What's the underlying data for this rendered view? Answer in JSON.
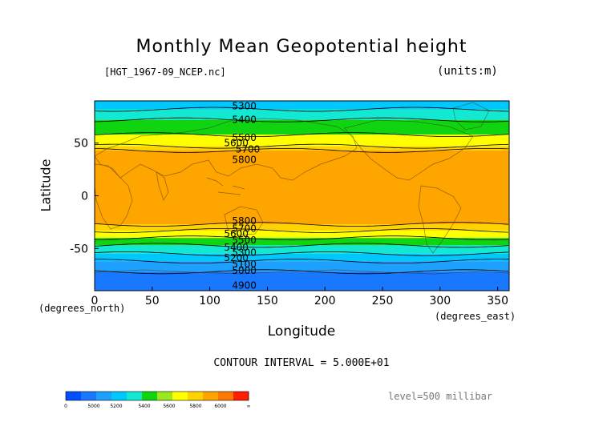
{
  "header": {
    "title": "Monthly Mean Geopotential height",
    "file": "[HGT_1967-09_NCEP.nc]",
    "units": "(units:m)"
  },
  "footer": {
    "interval": "CONTOUR INTERVAL = 5.000E+01",
    "level": "level=500 millibar"
  },
  "chart_data": {
    "type": "contour",
    "title": "Monthly Mean Geopotential height",
    "xlabel": "Longitude",
    "xlabel_units": "(degrees_east)",
    "ylabel": "Latitude",
    "ylabel_units": "(degrees_north)",
    "xlim": [
      0,
      360
    ],
    "ylim": [
      -90,
      90
    ],
    "xticks": [
      0,
      50,
      100,
      150,
      200,
      250,
      300,
      350
    ],
    "yticks": [
      -50,
      0,
      50
    ],
    "contour_interval": 50,
    "bands": [
      {
        "lat_from": 90,
        "lat_to": 82,
        "color": "#00C8FF"
      },
      {
        "lat_from": 82,
        "lat_to": 72,
        "color": "#12E8D2"
      },
      {
        "lat_from": 72,
        "lat_to": 58,
        "color": "#11D411"
      },
      {
        "lat_from": 58,
        "lat_to": 47,
        "color": "#FFFF00"
      },
      {
        "lat_from": 47,
        "lat_to": 43,
        "color": "#FFD300"
      },
      {
        "lat_from": 43,
        "lat_to": -27,
        "color": "#FFA500"
      },
      {
        "lat_from": -27,
        "lat_to": -33,
        "color": "#FFD300"
      },
      {
        "lat_from": -33,
        "lat_to": -40,
        "color": "#FFFF00"
      },
      {
        "lat_from": -40,
        "lat_to": -47,
        "color": "#11D411"
      },
      {
        "lat_from": -47,
        "lat_to": -55,
        "color": "#12E8D2"
      },
      {
        "lat_from": -55,
        "lat_to": -62,
        "color": "#00C8FF"
      },
      {
        "lat_from": -62,
        "lat_to": -72,
        "color": "#1EA0FF"
      },
      {
        "lat_from": -72,
        "lat_to": -90,
        "color": "#1878FF"
      }
    ],
    "contour_labels": [
      {
        "text": "5300",
        "lon": 130,
        "lat": 85
      },
      {
        "text": "5400",
        "lon": 130,
        "lat": 72
      },
      {
        "text": "5500",
        "lon": 130,
        "lat": 55
      },
      {
        "text": "5600",
        "lon": 123,
        "lat": 50
      },
      {
        "text": "5700",
        "lon": 133,
        "lat": 44
      },
      {
        "text": "5800",
        "lon": 130,
        "lat": 34
      },
      {
        "text": "5800",
        "lon": 130,
        "lat": -24
      },
      {
        "text": "5700",
        "lon": 130,
        "lat": -31
      },
      {
        "text": "5600",
        "lon": 123,
        "lat": -36
      },
      {
        "text": "5500",
        "lon": 130,
        "lat": -42
      },
      {
        "text": "5400",
        "lon": 123,
        "lat": -49
      },
      {
        "text": "5300",
        "lon": 130,
        "lat": -54
      },
      {
        "text": "5200",
        "lon": 123,
        "lat": -59
      },
      {
        "text": "5100",
        "lon": 130,
        "lat": -65
      },
      {
        "text": "5000",
        "lon": 130,
        "lat": -71
      },
      {
        "text": "4900",
        "lon": 130,
        "lat": -85
      }
    ]
  },
  "colorbar": {
    "colors": [
      "#0050FF",
      "#1878FF",
      "#1EA0FF",
      "#00C8FF",
      "#12E8D2",
      "#11D411",
      "#9BE81E",
      "#FFFF00",
      "#FFD300",
      "#FFA500",
      "#FF7800",
      "#FF1E00"
    ],
    "labels": [
      "0",
      "5000",
      "5200",
      "5400",
      "5600",
      "5800",
      "6000",
      "∞"
    ]
  }
}
